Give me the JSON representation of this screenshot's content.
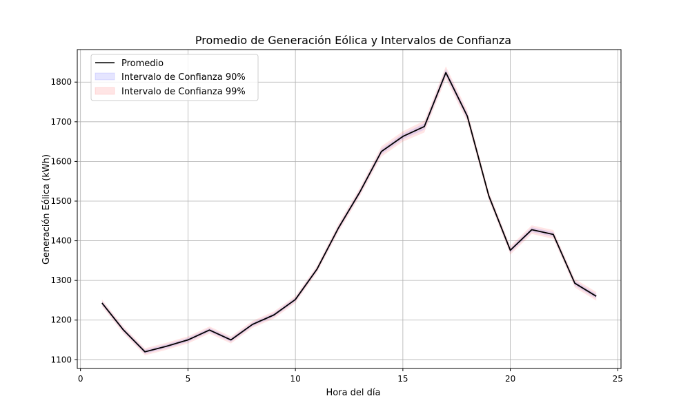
{
  "chart_data": {
    "type": "line",
    "title": "Promedio de Generación Eólica y Intervalos de Confianza",
    "xlabel": "Hora del día",
    "ylabel": "Generación Eólica (kWh)",
    "xlim": [
      -0.15,
      25.15
    ],
    "ylim": [
      1078,
      1882
    ],
    "xticks": [
      0,
      5,
      10,
      15,
      20,
      25
    ],
    "yticks": [
      1100,
      1200,
      1300,
      1400,
      1500,
      1600,
      1700,
      1800
    ],
    "grid": true,
    "legend_position": "upper-left",
    "x": [
      1,
      2,
      3,
      4,
      5,
      6,
      7,
      8,
      9,
      10,
      11,
      12,
      13,
      14,
      15,
      16,
      17,
      18,
      19,
      20,
      21,
      22,
      23,
      24
    ],
    "series": [
      {
        "name": "Promedio",
        "kind": "line",
        "color": "#000000",
        "values": [
          1243,
          1175,
          1120,
          1134,
          1150,
          1175,
          1150,
          1189,
          1213,
          1252,
          1328,
          1432,
          1523,
          1625,
          1663,
          1688,
          1824,
          1714,
          1513,
          1376,
          1428,
          1416,
          1293,
          1260
        ]
      },
      {
        "name": "Intervalo de Confianza 90%",
        "kind": "band",
        "color": "#0000ff",
        "opacity": 0.1,
        "lower": [
          1238,
          1170,
          1115,
          1129,
          1145,
          1170,
          1145,
          1184,
          1208,
          1247,
          1323,
          1426,
          1517,
          1618,
          1656,
          1680,
          1815,
          1706,
          1507,
          1370,
          1422,
          1410,
          1287,
          1254
        ],
        "upper": [
          1248,
          1180,
          1125,
          1139,
          1155,
          1180,
          1155,
          1194,
          1218,
          1257,
          1333,
          1438,
          1529,
          1632,
          1670,
          1696,
          1833,
          1722,
          1519,
          1382,
          1434,
          1422,
          1299,
          1266
        ]
      },
      {
        "name": "Intervalo de Confianza 99%",
        "kind": "band",
        "color": "#ff0000",
        "opacity": 0.1,
        "lower": [
          1234,
          1166,
          1111,
          1125,
          1141,
          1166,
          1141,
          1180,
          1204,
          1243,
          1319,
          1421,
          1512,
          1612,
          1650,
          1673,
          1808,
          1699,
          1502,
          1365,
          1417,
          1405,
          1282,
          1249
        ],
        "upper": [
          1252,
          1184,
          1129,
          1143,
          1159,
          1184,
          1159,
          1198,
          1222,
          1261,
          1337,
          1443,
          1534,
          1638,
          1676,
          1703,
          1840,
          1729,
          1524,
          1387,
          1439,
          1427,
          1304,
          1271
        ]
      }
    ]
  }
}
